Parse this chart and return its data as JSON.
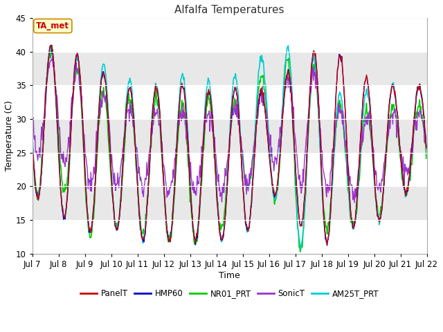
{
  "title": "Alfalfa Temperatures",
  "xlabel": "Time",
  "ylabel": "Temperature (C)",
  "ylim": [
    10,
    45
  ],
  "xlim_days": [
    7,
    22
  ],
  "fig_bg_color": "#ffffff",
  "plot_bg_color": "#e8e8e8",
  "grid_color": "#ffffff",
  "annotation_text": "TA_met",
  "annotation_bg": "#ffffcc",
  "annotation_border": "#cc8800",
  "annotation_text_color": "#cc0000",
  "x_tick_labels": [
    "Jul 7",
    "Jul 8",
    "Jul 9",
    "Jul 10",
    "Jul 11",
    "Jul 12",
    "Jul 13",
    "Jul 14",
    "Jul 15",
    "Jul 16",
    "Jul 17",
    "Jul 18",
    "Jul 19",
    "Jul 20",
    "Jul 21",
    "Jul 22"
  ],
  "series_colors": {
    "PanelT": "#cc0000",
    "HMP60": "#0000cc",
    "NR01_PRT": "#00cc00",
    "SonicT": "#9933cc",
    "AM25T_PRT": "#00cccc"
  },
  "legend_order": [
    "PanelT",
    "HMP60",
    "NR01_PRT",
    "SonicT",
    "AM25T_PRT"
  ],
  "daily_maxes_base": [
    41,
    41,
    39,
    36,
    34,
    35,
    35,
    34,
    35,
    34,
    38,
    41,
    39,
    35,
    35
  ],
  "daily_mins_base": [
    19,
    16,
    13,
    14,
    12,
    12,
    12,
    12,
    12,
    20,
    15,
    11,
    14,
    14,
    19
  ],
  "daily_maxes_am25": [
    42,
    40,
    39,
    38,
    35,
    35,
    37,
    35,
    37,
    40,
    41,
    38,
    32,
    35,
    35
  ],
  "daily_mins_am25": [
    19,
    16,
    13,
    14,
    12,
    12,
    12,
    12,
    12,
    20,
    11,
    11,
    14,
    14,
    19
  ],
  "daily_maxes_nr01": [
    41,
    40,
    37,
    33,
    33,
    33,
    32,
    33,
    32,
    38,
    39,
    37,
    30,
    32,
    32
  ],
  "daily_mins_nr01": [
    18,
    21,
    12,
    14,
    13,
    12,
    11,
    12,
    20,
    20,
    10,
    13,
    14,
    15,
    19
  ],
  "daily_maxes_sonic": [
    38,
    39,
    36,
    33,
    31,
    31,
    31,
    31,
    32,
    34,
    37,
    37,
    29,
    31,
    31
  ],
  "daily_mins_sonic": [
    25,
    24,
    20,
    20,
    20,
    19,
    19,
    19,
    19,
    24,
    21,
    19,
    19,
    19,
    22
  ]
}
